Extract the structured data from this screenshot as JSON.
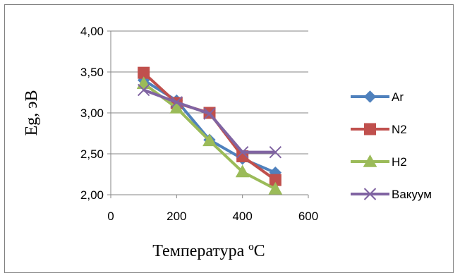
{
  "chart_data": {
    "type": "line",
    "title": "",
    "xlabel": "Температура ºС",
    "ylabel": "Eg, эВ",
    "xlim": [
      0,
      600
    ],
    "ylim": [
      2.0,
      4.0
    ],
    "x_ticks": [
      "0",
      "200",
      "400",
      "600"
    ],
    "x_tick_values": [
      0,
      200,
      400,
      600
    ],
    "y_ticks": [
      "2,00",
      "2,50",
      "3,00",
      "3,50",
      "4,00"
    ],
    "y_tick_values": [
      2.0,
      2.5,
      3.0,
      3.5,
      4.0
    ],
    "grid": "horizontal",
    "legend": "right",
    "series": [
      {
        "name": "Ar",
        "color": "#4f81bd",
        "marker": "diamond",
        "x": [
          100,
          200,
          300,
          400,
          500
        ],
        "y": [
          3.4,
          3.15,
          2.67,
          2.44,
          2.27
        ]
      },
      {
        "name": "N2",
        "color": "#c0504d",
        "marker": "square",
        "x": [
          100,
          200,
          300,
          400,
          500
        ],
        "y": [
          3.49,
          3.12,
          3.0,
          2.47,
          2.18
        ]
      },
      {
        "name": "H2",
        "color": "#9bbb59",
        "marker": "triangle",
        "x": [
          100,
          200,
          300,
          400,
          500
        ],
        "y": [
          3.36,
          3.06,
          2.66,
          2.28,
          2.07
        ]
      },
      {
        "name": "Вакуум",
        "color": "#8064a2",
        "marker": "x",
        "x": [
          100,
          200,
          300,
          400,
          500
        ],
        "y": [
          3.28,
          3.13,
          2.99,
          2.52,
          2.52
        ]
      }
    ]
  }
}
